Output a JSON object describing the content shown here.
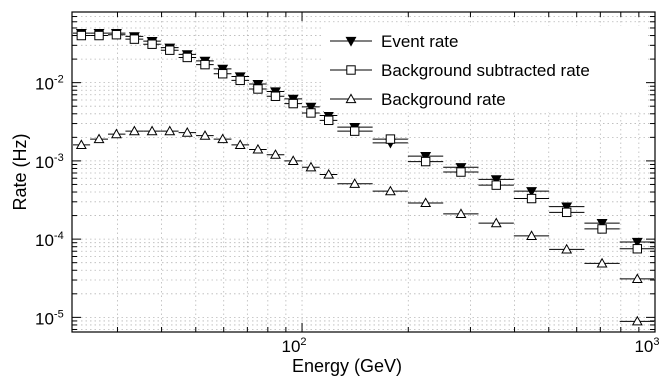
{
  "chart_data": {
    "type": "scatter",
    "title": "",
    "xlabel": "Energy (GeV)",
    "ylabel": "Rate (Hz)",
    "xscale": "log",
    "yscale": "log",
    "xlim": [
      22.3,
      1000
    ],
    "ylim": [
      6.5e-06,
      0.08
    ],
    "grid": true,
    "legend_position": "top-right",
    "x_ticks": [
      {
        "value": 100,
        "base": "10",
        "exp": "2"
      },
      {
        "value": 1000,
        "base": "10",
        "exp": "3"
      }
    ],
    "y_ticks": [
      {
        "value": 1e-05,
        "base": "10",
        "exp": "-5"
      },
      {
        "value": 0.0001,
        "base": "10",
        "exp": "-4"
      },
      {
        "value": 0.001,
        "base": "10",
        "exp": "-3"
      },
      {
        "value": 0.01,
        "base": "10",
        "exp": "-2"
      }
    ],
    "bin_edges": [
      22.4,
      25.1,
      28.2,
      31.6,
      35.5,
      39.8,
      44.7,
      50.1,
      56.2,
      63.1,
      70.8,
      79.4,
      89.1,
      100,
      112.2,
      125.9,
      158.5,
      199.5,
      251.2,
      316.2,
      398.1,
      501.2,
      631,
      794.3,
      1000
    ],
    "x": [
      23.7,
      26.6,
      29.8,
      33.5,
      37.6,
      42.2,
      47.3,
      53.1,
      59.6,
      66.8,
      75,
      84.1,
      94.4,
      106,
      119,
      141,
      178,
      224,
      282,
      355,
      447,
      562,
      708,
      891
    ],
    "series": [
      {
        "name": "Event rate",
        "marker": "triangle-down-filled",
        "values": [
          0.043,
          0.043,
          0.043,
          0.039,
          0.034,
          0.028,
          0.023,
          0.019,
          0.015,
          0.012,
          0.0096,
          0.0077,
          0.0062,
          0.0049,
          0.0038,
          0.0027,
          0.0017,
          0.00115,
          0.00083,
          0.00058,
          0.00041,
          0.00026,
          0.00016,
          9.18e-05
        ]
      },
      {
        "name": "Background subtracted rate",
        "marker": "square-open",
        "values": [
          0.04,
          0.04,
          0.041,
          0.036,
          0.031,
          0.026,
          0.021,
          0.017,
          0.013,
          0.0107,
          0.0083,
          0.0067,
          0.0054,
          0.0041,
          0.0033,
          0.0024,
          0.0019,
          0.00098,
          0.00072,
          0.00049,
          0.00033,
          0.00022,
          0.000135,
          7.53e-05
        ]
      },
      {
        "name": "Background rate",
        "marker": "triangle-up-open",
        "values": [
          0.0016,
          0.0019,
          0.0022,
          0.0024,
          0.0024,
          0.0024,
          0.0023,
          0.0021,
          0.0019,
          0.0016,
          0.0014,
          0.0012,
          0.001,
          0.00083,
          0.00067,
          0.00051,
          0.00041,
          0.00029,
          0.00021,
          0.00016,
          0.00011,
          7.4e-05,
          4.9e-05,
          3.1e-05
        ]
      }
    ],
    "extra_points": [
      {
        "series": "Background rate",
        "x": 891,
        "value": 8.9e-06
      }
    ]
  }
}
